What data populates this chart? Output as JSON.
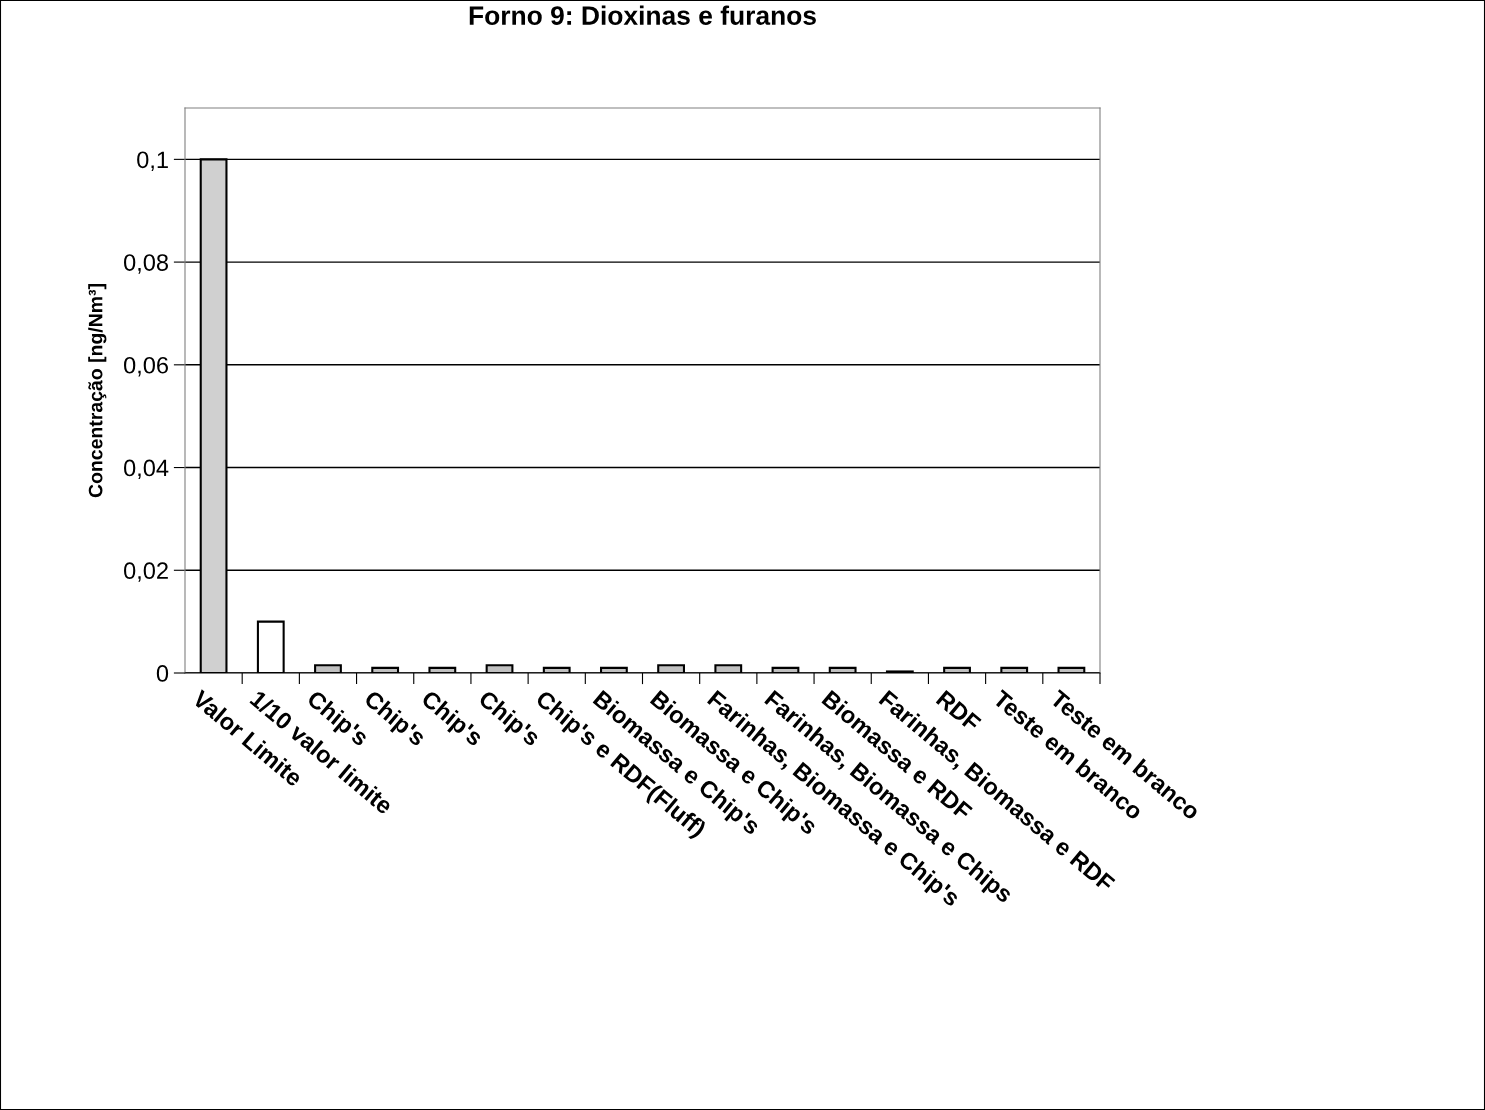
{
  "chart_data": {
    "type": "bar",
    "title": "Forno 9: Dioxinas e furanos",
    "ylabel": "Concentração [ng/Nm³]",
    "categories": [
      "Valor Limite",
      "1/10 valor limite",
      "Chip's",
      "Chip's",
      "Chip's",
      "Chip's",
      "Chip's e RDF(Fluff)",
      "Biomassa e Chip's",
      "Biomassa e Chip's",
      "Farinhas, Biomassa e Chip's",
      "Farinhas, Biomassa e Chips",
      "Biomassa e RDF",
      "Farinhas, Biomassa e RDF",
      "RDF",
      "Teste em branco",
      "Teste em branco"
    ],
    "values": [
      0.1,
      0.01,
      0.0015,
      0.001,
      0.001,
      0.0015,
      0.001,
      0.001,
      0.0015,
      0.0015,
      0.001,
      0.001,
      0.0003,
      0.001,
      0.001,
      0.001
    ],
    "colors": [
      "#d0d0d0",
      "#ffffff",
      "#c0c0c0",
      "#c0c0c0",
      "#c0c0c0",
      "#c0c0c0",
      "#c0c0c0",
      "#c0c0c0",
      "#c0c0c0",
      "#c0c0c0",
      "#c0c0c0",
      "#c0c0c0",
      "#c0c0c0",
      "#c0c0c0",
      "#c0c0c0",
      "#c0c0c0"
    ],
    "ylim": [
      0,
      0.11
    ],
    "yticks": [
      {
        "value": 0,
        "label": "0"
      },
      {
        "value": 0.02,
        "label": "0,02"
      },
      {
        "value": 0.04,
        "label": "0,04"
      },
      {
        "value": 0.06,
        "label": "0,06"
      },
      {
        "value": 0.08,
        "label": "0,08"
      },
      {
        "value": 0.1,
        "label": "0,1"
      }
    ],
    "grid": "y",
    "legend": false
  }
}
